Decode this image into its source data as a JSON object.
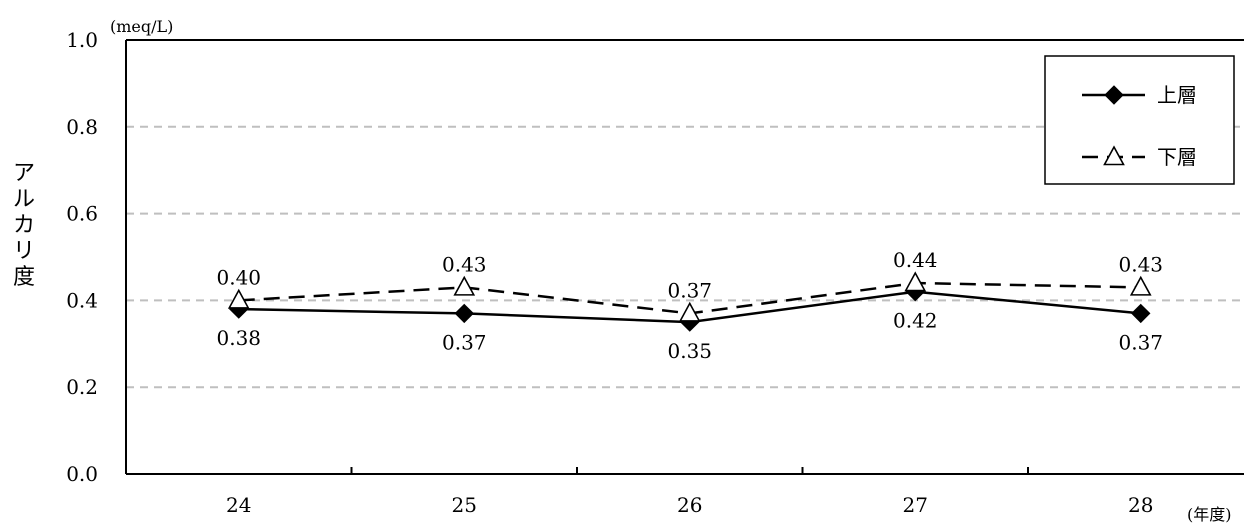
{
  "chart_data": {
    "type": "line",
    "title": "",
    "xlabel": "(年度)",
    "ylabel": "アルカリ度",
    "y_unit": "(meq/L)",
    "categories": [
      "24",
      "25",
      "26",
      "27",
      "28"
    ],
    "y_ticks": [
      "0.0",
      "0.2",
      "0.4",
      "0.6",
      "0.8",
      "1.0"
    ],
    "ylim": [
      0,
      1.0
    ],
    "grid": true,
    "legend_position": "top-right",
    "series": [
      {
        "name": "上層",
        "values": [
          0.38,
          0.37,
          0.35,
          0.42,
          0.37
        ],
        "labels": [
          "0.38",
          "0.37",
          "0.35",
          "0.42",
          "0.37"
        ],
        "marker": "filled-diamond",
        "line": "solid",
        "color": "#000000"
      },
      {
        "name": "下層",
        "values": [
          0.4,
          0.43,
          0.37,
          0.44,
          0.43
        ],
        "labels": [
          "0.40",
          "0.43",
          "0.37",
          "0.44",
          "0.43"
        ],
        "marker": "open-triangle",
        "line": "dashed",
        "color": "#000000"
      }
    ],
    "gridline_color": "#bfbfbf"
  }
}
